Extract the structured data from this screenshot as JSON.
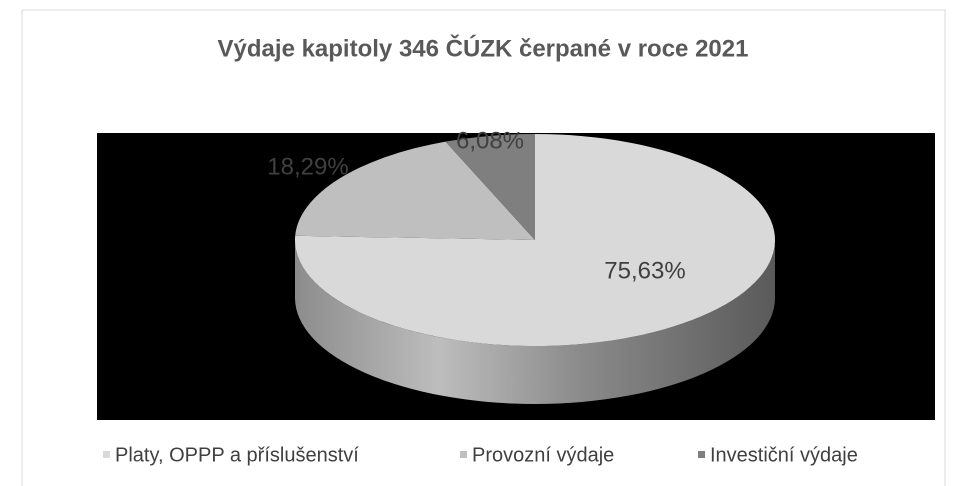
{
  "chart_data": {
    "type": "pie3d",
    "title": "Výdaje kapitoly 346 ČÚZK čerpané v roce 2021",
    "categories": [
      "Platy, OPPP a příslušenství",
      "Provozní výdaje",
      "Investiční výdaje"
    ],
    "values": [
      75.63,
      18.29,
      6.08
    ],
    "value_labels": [
      "75,63%",
      "18,29%",
      "6,08%"
    ],
    "colors": [
      "#d9d9d9",
      "#bfbfbf",
      "#7f7f7f"
    ],
    "legend": "bottom"
  }
}
